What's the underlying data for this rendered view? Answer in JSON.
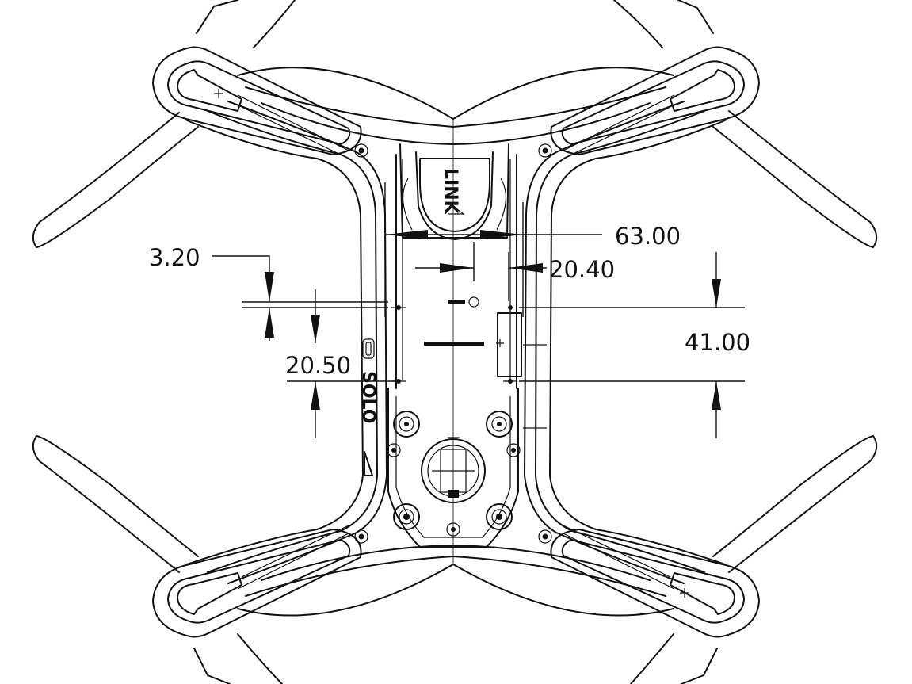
{
  "dimensions": {
    "width_top": "63.00",
    "offset_right": "20.40",
    "gap_small": "3.20",
    "height_right": "41.00",
    "height_left": "20.50"
  },
  "markings": {
    "logo_top": "LINK",
    "logo_side": "SOLO"
  }
}
